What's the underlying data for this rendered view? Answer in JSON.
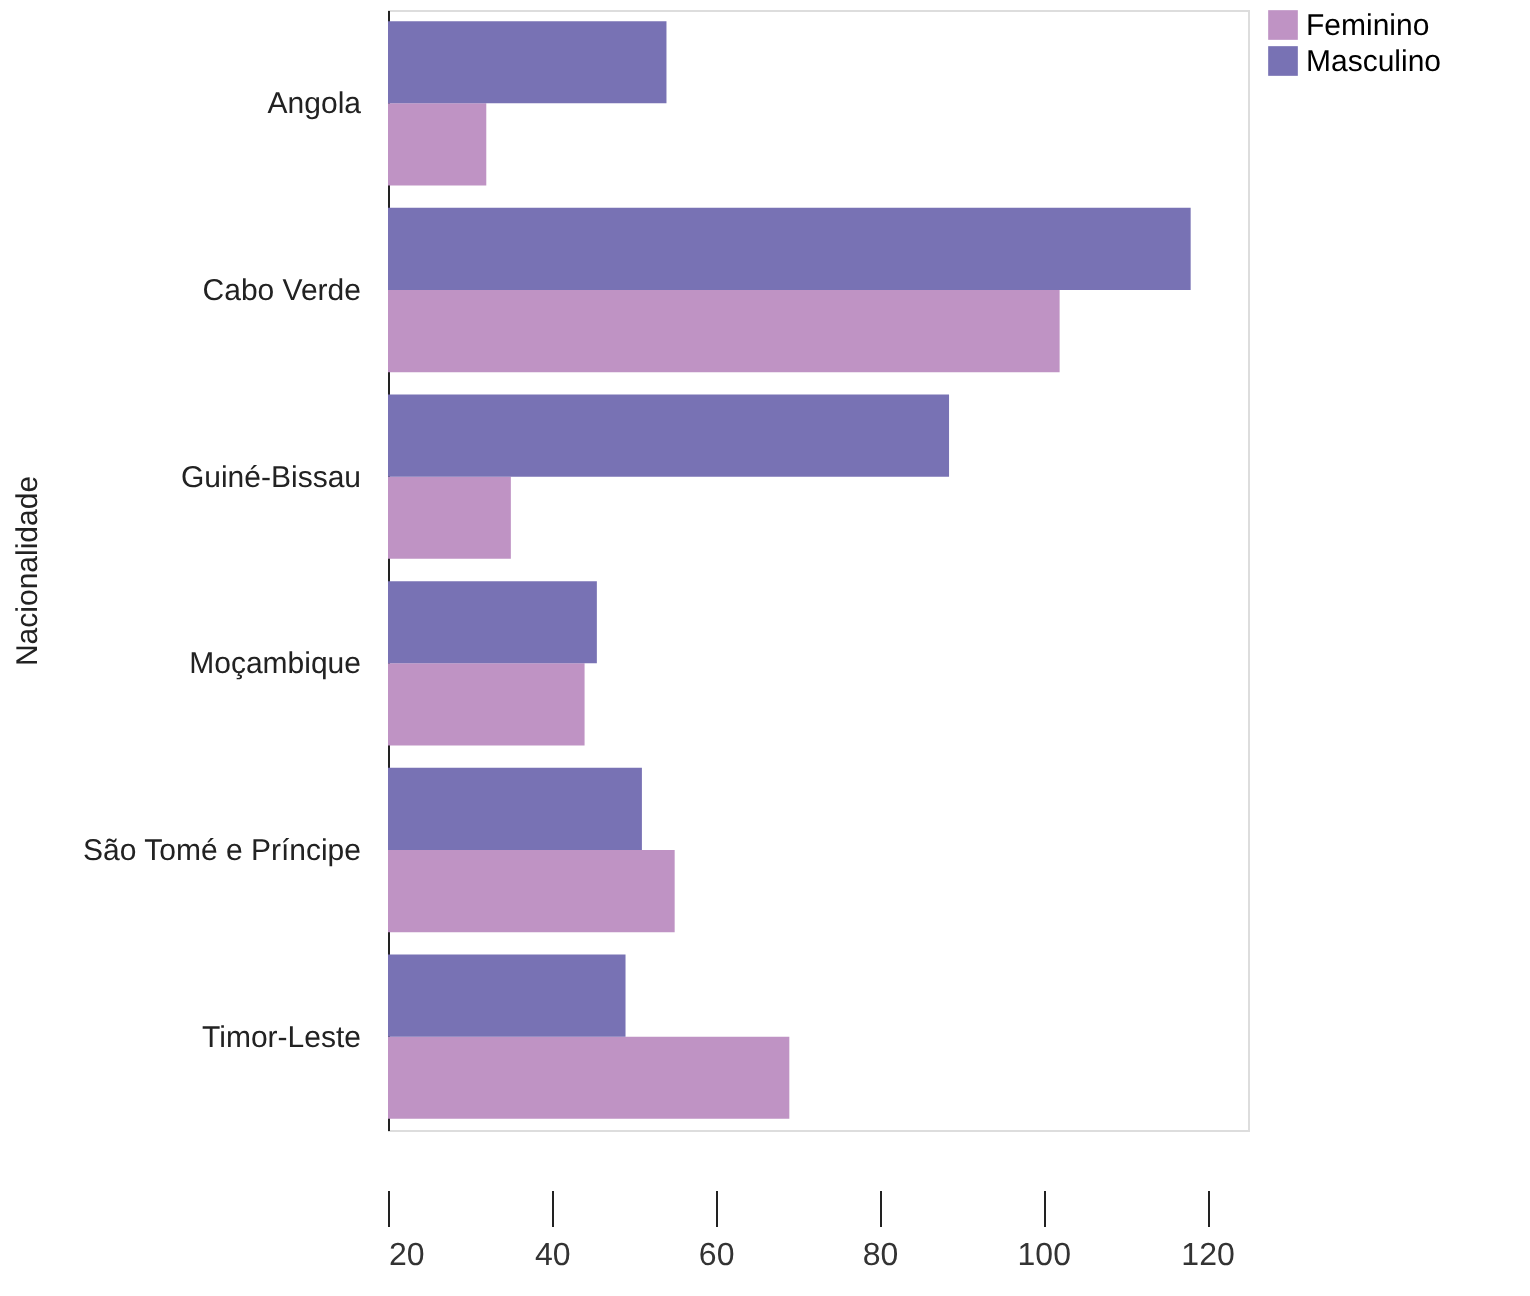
{
  "chart_data": {
    "type": "bar",
    "orientation": "horizontal",
    "ylabel": "Nacionalidade",
    "categories": [
      "Angola",
      "Cabo Verde",
      "Guiné-Bissau",
      "Moçambique",
      "São Tomé e Príncipe",
      "Timor-Leste"
    ],
    "series": [
      {
        "name": "Feminino",
        "color": "#bf93c4",
        "values": [
          32,
          102,
          35,
          44,
          55,
          69
        ]
      },
      {
        "name": "Masculino",
        "color": "#7872b4",
        "values": [
          54,
          118,
          88.5,
          45.5,
          51,
          49
        ]
      }
    ],
    "xlim": [
      20,
      125
    ],
    "xticks": [
      20,
      40,
      60,
      80,
      100,
      120
    ],
    "grid": false,
    "legend": "top right"
  }
}
